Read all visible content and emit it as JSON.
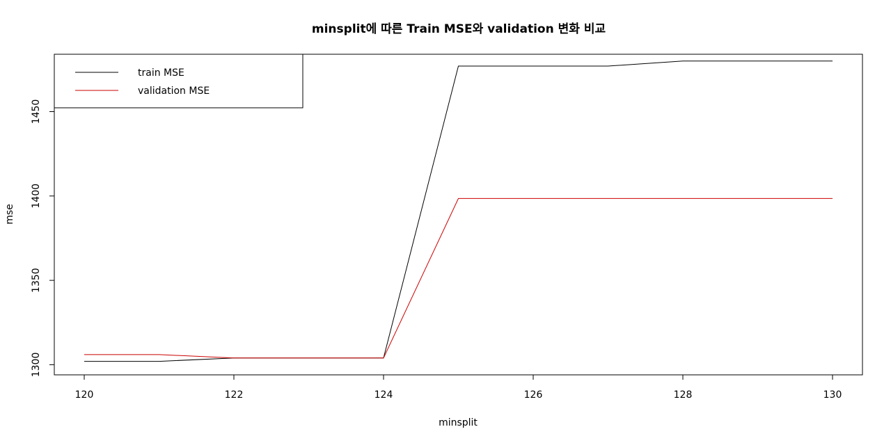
{
  "chart_data": {
    "type": "line",
    "title": "minsplit에 따른 Train MSE와 validation 변화 비교",
    "xlabel": "minsplit",
    "ylabel": "mse",
    "x": [
      120,
      121,
      122,
      123,
      124,
      125,
      126,
      127,
      128,
      129,
      130
    ],
    "xlim": [
      119.6,
      130.4
    ],
    "ylim": [
      1294,
      1484
    ],
    "x_ticks": [
      120,
      122,
      124,
      126,
      128,
      130
    ],
    "y_ticks": [
      1300,
      1350,
      1400,
      1450
    ],
    "legend_position": "top-left",
    "grid": false,
    "series": [
      {
        "name": "train MSE",
        "color": "#000000",
        "values": [
          1302,
          1302,
          1304,
          1304,
          1304,
          1477,
          1477,
          1477,
          1480,
          1480,
          1480
        ]
      },
      {
        "name": "validation MSE",
        "color": "#cc0000",
        "values": [
          1306,
          1306,
          1304,
          1304,
          1304,
          1398.5,
          1398.5,
          1398.5,
          1398.5,
          1398.5,
          1398.5
        ]
      }
    ]
  }
}
